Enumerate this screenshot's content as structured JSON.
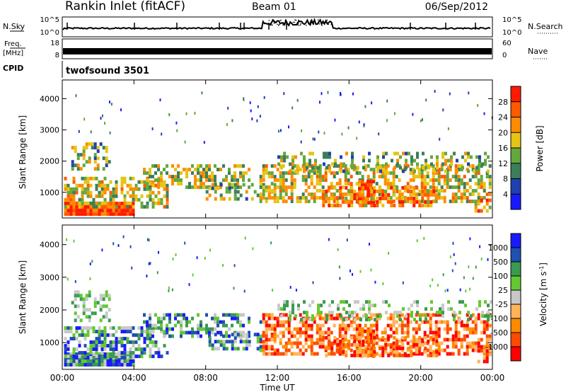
{
  "header": {
    "station": "Rankin Inlet (fitACF)",
    "beam": "Beam 01",
    "date": "06/Sep/2012"
  },
  "panels": {
    "nsky": {
      "label": "N.Sky",
      "ticks_left": [
        "10^5",
        "10^0"
      ],
      "ticks_right": [
        "10^5",
        "10^0"
      ],
      "right_label": "N.Search"
    },
    "freq": {
      "label_top": "Freq.",
      "label_unit": "[MHz]",
      "ticks_left": [
        "18",
        "8"
      ],
      "ticks_right": [
        "60",
        "0"
      ],
      "right_label": "Nave"
    },
    "cpid": {
      "label": "CPID",
      "value": "twofsound 3501"
    }
  },
  "colors": {
    "power": [
      "#1a1aff",
      "#2040b0",
      "#3a7f5a",
      "#64a83c",
      "#e6c414",
      "#ff8c00",
      "#ff5a00",
      "#ff1a00"
    ],
    "velocity": [
      "#ff0000",
      "#ff4a00",
      "#ff8a00",
      "#ffb45a",
      "#c8c8c8",
      "#64c832",
      "#3a9a50",
      "#2050b0",
      "#1a1aff"
    ]
  },
  "chart_data": [
    {
      "type": "heatmap",
      "title": "Power",
      "ylabel": "Slant Range [km]",
      "xlabel": "",
      "x_ticks": [
        "00:00",
        "04:00",
        "08:00",
        "12:00",
        "16:00",
        "20:00",
        "00:00"
      ],
      "y_ticks": [
        1000,
        2000,
        3000,
        4000
      ],
      "ylim": [
        180,
        4600
      ],
      "xlim_hours": [
        0,
        24
      ],
      "colorbar": {
        "label": "Power [dB]",
        "ticks": [
          4,
          8,
          12,
          16,
          20,
          24,
          28
        ],
        "range": [
          0,
          32
        ]
      }
    },
    {
      "type": "heatmap",
      "title": "Velocity",
      "ylabel": "Slant Range [km]",
      "xlabel": "Time UT",
      "x_ticks": [
        "00:00",
        "04:00",
        "08:00",
        "12:00",
        "16:00",
        "20:00",
        "00:00"
      ],
      "y_ticks": [
        1000,
        2000,
        3000,
        4000
      ],
      "ylim": [
        180,
        4600
      ],
      "xlim_hours": [
        0,
        24
      ],
      "colorbar": {
        "label": "Velocity [m s^-1]",
        "ticks": [
          "1000",
          "500",
          "100",
          "25",
          "-25",
          "-100",
          "-500",
          "-1000"
        ]
      }
    }
  ]
}
